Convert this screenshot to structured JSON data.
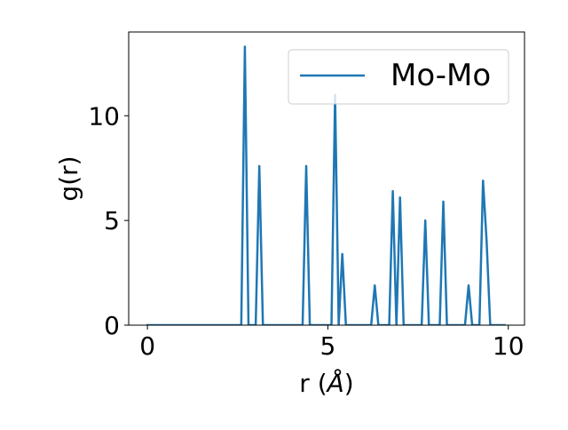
{
  "chart_data": {
    "type": "line",
    "title": "",
    "xlabel_prefix": "r (",
    "xlabel_unit": "Å",
    "xlabel_suffix": ")",
    "ylabel": "g(r)",
    "xlim": [
      -0.52,
      10.45
    ],
    "ylim": [
      0,
      14.0
    ],
    "xticks": [
      0,
      5,
      10
    ],
    "xtick_labels": [
      "0",
      "5",
      "10"
    ],
    "yticks": [
      0,
      5,
      10
    ],
    "ytick_labels": [
      "0",
      "5",
      "10"
    ],
    "grid": false,
    "legend_position": "top-right",
    "series": [
      {
        "name": "Mo-Mo",
        "color": "#1f77b4",
        "x": [
          0.0,
          2.6,
          2.7,
          2.8,
          3.0,
          3.1,
          3.2,
          4.3,
          4.4,
          4.5,
          5.1,
          5.2,
          5.3,
          5.4,
          5.5,
          6.2,
          6.3,
          6.4,
          6.7,
          6.8,
          6.9,
          7.0,
          7.1,
          7.6,
          7.7,
          7.8,
          8.1,
          8.2,
          8.3,
          8.8,
          8.9,
          9.0,
          9.2,
          9.3,
          9.4,
          9.5,
          9.9
        ],
        "y": [
          0,
          0,
          13.3,
          0,
          0,
          7.6,
          0,
          0,
          7.6,
          0,
          0,
          11.0,
          0,
          3.4,
          0,
          0,
          1.9,
          0,
          0,
          6.4,
          0,
          6.1,
          0,
          0,
          5.0,
          0,
          0,
          5.9,
          0,
          0,
          1.9,
          0,
          0,
          6.9,
          4.0,
          0,
          0
        ]
      }
    ]
  }
}
